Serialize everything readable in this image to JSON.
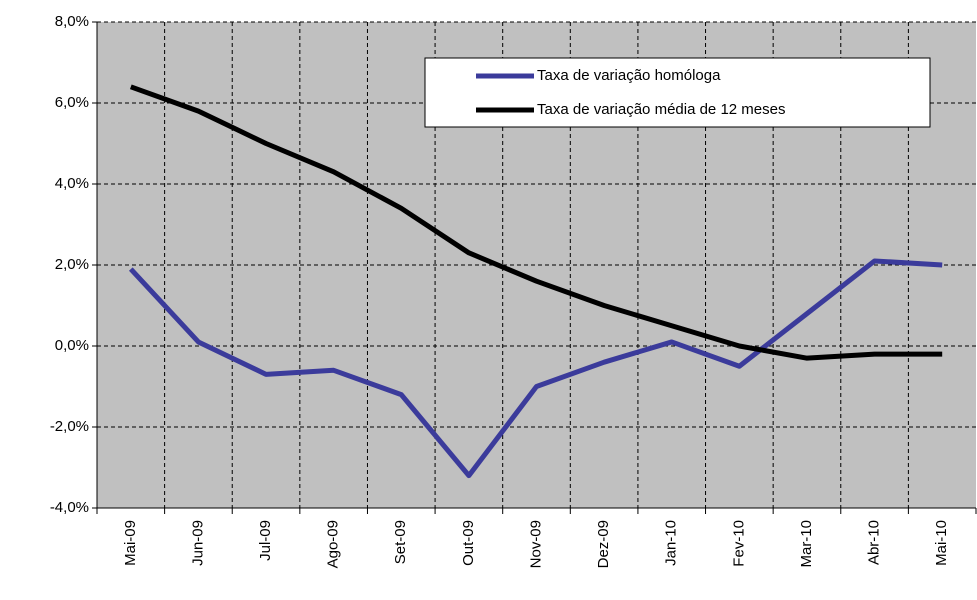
{
  "chart_data": {
    "type": "line",
    "categories": [
      "Mai-09",
      "Jun-09",
      "Jul-09",
      "Ago-09",
      "Set-09",
      "Out-09",
      "Nov-09",
      "Dez-09",
      "Jan-10",
      "Fev-10",
      "Mar-10",
      "Abr-10",
      "Mai-10"
    ],
    "series": [
      {
        "name": "Taxa de variação homóloga",
        "color": "#3b3b9b",
        "values": [
          1.9,
          0.1,
          -0.7,
          -0.6,
          -1.2,
          -3.2,
          -1.0,
          -0.4,
          0.1,
          -0.5,
          0.8,
          2.1,
          2.0
        ]
      },
      {
        "name": "Taxa de variação média de 12 meses",
        "color": "#000000",
        "values": [
          6.4,
          5.8,
          5.0,
          4.3,
          3.4,
          2.3,
          1.6,
          1.0,
          0.5,
          0.0,
          -0.3,
          -0.2,
          -0.2
        ]
      }
    ],
    "ylim": [
      -4,
      8
    ],
    "yticks": [
      {
        "value": -4,
        "label": "-4,0%"
      },
      {
        "value": -2,
        "label": "-2,0%"
      },
      {
        "value": 0,
        "label": "0,0%"
      },
      {
        "value": 2,
        "label": "2,0%"
      },
      {
        "value": 4,
        "label": "4,0%"
      },
      {
        "value": 6,
        "label": "6,0%"
      },
      {
        "value": 8,
        "label": "8,0%"
      }
    ],
    "grid": true,
    "legend": "upper right"
  }
}
